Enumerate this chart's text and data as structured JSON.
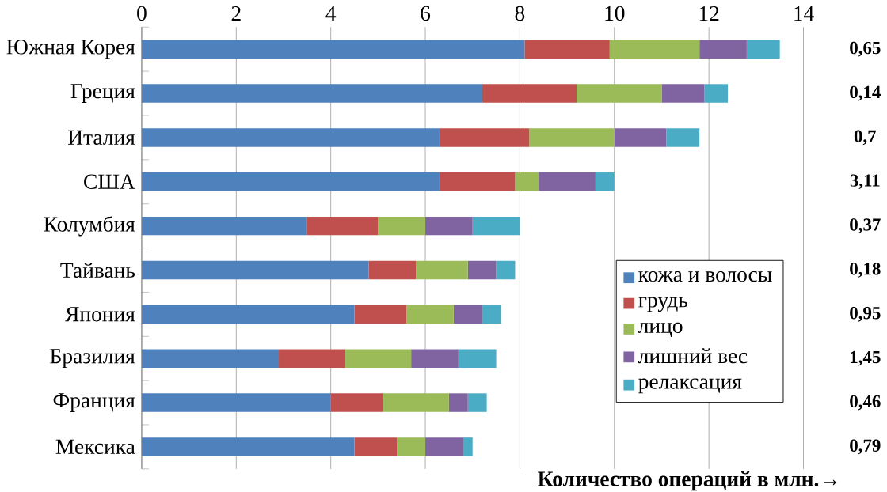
{
  "chart_data": {
    "type": "bar",
    "orientation": "horizontal",
    "stacked": true,
    "categories": [
      "Южная Корея",
      "Греция",
      "Италия",
      "США",
      "Колумбия",
      "Тайвань",
      "Япония",
      "Бразилия",
      "Франция",
      "Мексика"
    ],
    "series": [
      {
        "name": "кожа и волосы",
        "color": "#4f81bd",
        "values": [
          8.1,
          7.2,
          6.3,
          6.3,
          3.5,
          4.8,
          4.5,
          2.9,
          4.0,
          4.5
        ]
      },
      {
        "name": "грудь",
        "color": "#c0504d",
        "values": [
          1.8,
          2.0,
          1.9,
          1.6,
          1.5,
          1.0,
          1.1,
          1.4,
          1.1,
          0.9
        ]
      },
      {
        "name": "лицо",
        "color": "#9bbb59",
        "values": [
          1.9,
          1.8,
          1.8,
          0.5,
          1.0,
          1.1,
          1.0,
          1.4,
          1.4,
          0.6
        ]
      },
      {
        "name": "лишний вес",
        "color": "#8064a2",
        "values": [
          1.0,
          0.9,
          1.1,
          1.2,
          1.0,
          0.6,
          0.6,
          1.0,
          0.4,
          0.8
        ]
      },
      {
        "name": "релаксация",
        "color": "#4bacc6",
        "values": [
          0.7,
          0.5,
          0.7,
          0.4,
          1.0,
          0.4,
          0.4,
          0.8,
          0.4,
          0.2
        ]
      }
    ],
    "xlim": [
      0,
      14
    ],
    "xticks": [
      0,
      2,
      4,
      6,
      8,
      10,
      12,
      14
    ],
    "grid": "x",
    "legend": "right",
    "xlabel": "Количество операций в млн.→",
    "annotations": [
      "0,65",
      "0,14",
      "0,7",
      "3,11",
      "0,37",
      "0,18",
      "0,95",
      "1,45",
      "0,46",
      "0,79"
    ]
  }
}
